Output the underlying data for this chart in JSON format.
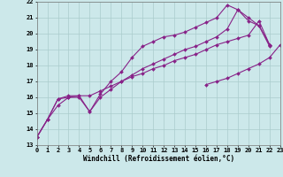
{
  "xlabel": "Windchill (Refroidissement éolien,°C)",
  "ylabel": "",
  "bg_color": "#cce8ea",
  "grid_color": "#aacccc",
  "line_color": "#882288",
  "xmin": 0,
  "xmax": 23,
  "ymin": 13,
  "ymax": 22,
  "lines": [
    {
      "x": [
        0,
        1,
        2,
        3,
        4,
        5,
        6,
        7,
        8,
        9,
        10,
        11,
        12,
        13,
        14,
        15,
        16,
        17,
        18,
        19,
        20,
        21,
        22
      ],
      "y": [
        13.5,
        14.6,
        15.5,
        16.0,
        16.0,
        15.1,
        16.2,
        17.0,
        17.6,
        18.5,
        19.2,
        19.5,
        19.8,
        19.9,
        20.1,
        20.4,
        20.7,
        21.0,
        21.8,
        21.5,
        20.8,
        20.5,
        19.3
      ]
    },
    {
      "x": [
        0,
        1,
        2,
        3,
        4,
        5,
        6,
        7,
        8,
        9,
        10,
        11,
        12,
        13,
        14,
        15,
        16,
        17,
        18,
        19,
        20,
        21,
        22
      ],
      "y": [
        13.5,
        14.6,
        15.9,
        16.0,
        16.1,
        15.1,
        16.0,
        16.5,
        17.0,
        17.4,
        17.8,
        18.1,
        18.4,
        18.7,
        19.0,
        19.2,
        19.5,
        19.8,
        20.3,
        21.5,
        21.0,
        20.5,
        19.2
      ]
    },
    {
      "x": [
        0,
        1,
        2,
        3,
        4,
        5,
        6,
        7,
        8,
        9,
        10,
        11,
        12,
        13,
        14,
        15,
        16,
        17,
        18,
        19,
        20,
        21,
        22
      ],
      "y": [
        13.5,
        14.6,
        15.9,
        16.1,
        16.1,
        16.1,
        16.4,
        16.7,
        17.0,
        17.3,
        17.5,
        17.8,
        18.0,
        18.3,
        18.5,
        18.7,
        19.0,
        19.3,
        19.5,
        19.7,
        19.9,
        20.8,
        19.3
      ]
    },
    {
      "x": [
        16,
        17,
        18,
        19,
        20,
        21,
        22,
        23
      ],
      "y": [
        16.8,
        17.0,
        17.2,
        17.5,
        17.8,
        18.1,
        18.5,
        19.3
      ]
    }
  ],
  "yticks": [
    13,
    14,
    15,
    16,
    17,
    18,
    19,
    20,
    21,
    22
  ],
  "xticks": [
    0,
    1,
    2,
    3,
    4,
    5,
    6,
    7,
    8,
    9,
    10,
    11,
    12,
    13,
    14,
    15,
    16,
    17,
    18,
    19,
    20,
    21,
    22,
    23
  ],
  "marker": "D",
  "markersize": 2.0,
  "linewidth": 0.8,
  "axis_fontsize": 5.5,
  "tick_fontsize": 5.0
}
